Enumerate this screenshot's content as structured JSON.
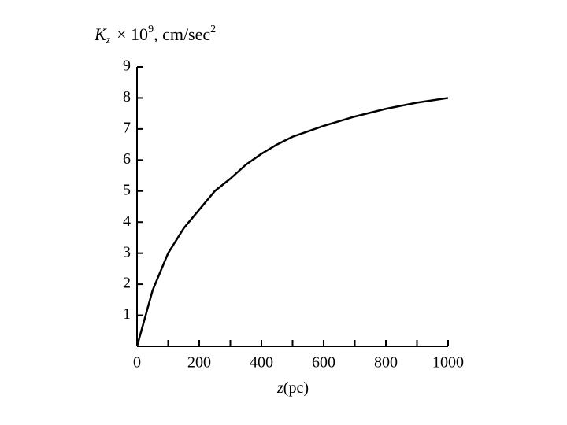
{
  "chart_data": {
    "type": "line",
    "title_parts": [
      "K",
      "z",
      "× 10",
      "9",
      ", cm/sec",
      "2"
    ],
    "xlabel_parts": [
      "z",
      "(pc)"
    ],
    "x": [
      0,
      50,
      100,
      150,
      200,
      250,
      300,
      350,
      400,
      450,
      500,
      600,
      700,
      800,
      900,
      1000
    ],
    "series": [
      {
        "color": "#000000",
        "values": [
          0,
          1.8,
          3.0,
          3.8,
          4.4,
          5.0,
          5.4,
          5.85,
          6.2,
          6.5,
          6.75,
          7.1,
          7.4,
          7.65,
          7.85,
          8.0
        ]
      }
    ],
    "xlim": [
      0,
      1000
    ],
    "xticks": [
      0,
      200,
      400,
      600,
      800,
      1000
    ],
    "xminorticks": [
      100,
      300,
      500,
      700,
      900
    ],
    "ylim": [
      0,
      9
    ],
    "yticks": [
      1,
      2,
      3,
      4,
      5,
      6,
      7,
      8,
      9
    ]
  }
}
